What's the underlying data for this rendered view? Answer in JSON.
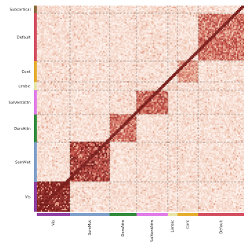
{
  "chart_data": {
    "type": "heatmap",
    "title": "",
    "networks": [
      {
        "name": "Vis",
        "color": "#8f3fa3",
        "lo": 0.8,
        "hi": 1.0
      },
      {
        "name": "SomMot",
        "color": "#7e9ec9",
        "lo": 0.6,
        "hi": 1.0
      },
      {
        "name": "DorsAttn",
        "color": "#2f8a3a",
        "lo": 0.4,
        "hi": 0.8
      },
      {
        "name": "SalVentAttn",
        "color": "#e07ae8",
        "lo": 0.45,
        "hi": 0.85
      },
      {
        "name": "Limbic",
        "color": "#e8e4a6",
        "lo": 0.1,
        "hi": 0.3
      },
      {
        "name": "Cont",
        "color": "#e6ac2d",
        "lo": 0.3,
        "hi": 0.6
      },
      {
        "name": "Default",
        "color": "#d34d5f",
        "lo": 0.4,
        "hi": 0.8
      },
      {
        "name": "Subcortical",
        "color": "#8a6a3a",
        "lo": 0.05,
        "hi": 0.2
      }
    ],
    "x_labels": [
      "Vis",
      "SomMot",
      "DorsAttn",
      "SalVentAttn",
      "Limbic",
      "Cont",
      "Default"
    ],
    "y_labels": [
      "Subcortical",
      "Default",
      "Cont",
      "Limbic",
      "SalVentAttn",
      "DorsAttn",
      "SomMot",
      "Vis"
    ],
    "value_range": [
      0,
      1
    ],
    "colormap": [
      "#fff7f3",
      "#e9b49c",
      "#c8544a",
      "#6d1414"
    ],
    "off_diagonal_range": [
      0.02,
      0.22
    ]
  }
}
